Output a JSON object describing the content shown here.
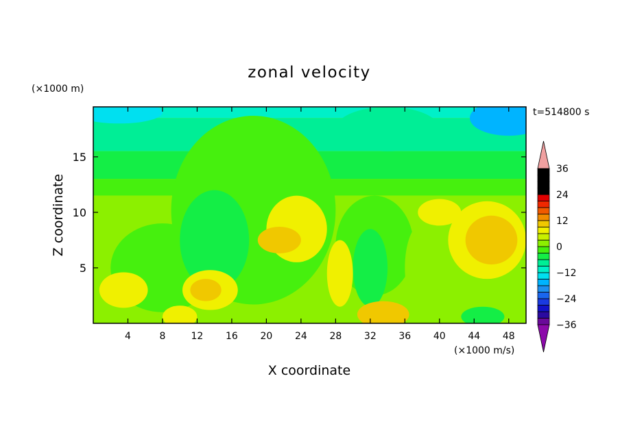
{
  "chart_data": {
    "type": "heatmap",
    "title": "zonal velocity",
    "xlabel": "X coordinate",
    "ylabel": "Z coordinate",
    "x_unit_label": "(×1000 m/s)",
    "y_unit_label": "(×1000 m)",
    "time_label": "t=514800 s",
    "xlim": [
      0,
      50
    ],
    "ylim": [
      0,
      19.5
    ],
    "x_ticks": [
      4,
      8,
      12,
      16,
      20,
      24,
      28,
      32,
      36,
      40,
      44,
      48
    ],
    "y_ticks": [
      5,
      10,
      15
    ],
    "colorbar": {
      "levels": [
        -39,
        -36,
        -33,
        -30,
        -27,
        -24,
        -21,
        -18,
        -15,
        -12,
        -9,
        -6,
        -3,
        0,
        3,
        6,
        9,
        12,
        15,
        18,
        21,
        24,
        27,
        30,
        33,
        36,
        39
      ],
      "tick_labels": [
        36,
        24,
        12,
        0,
        -12,
        -24,
        -36
      ],
      "colors": [
        "#6a0a9a",
        "#2a0aa0",
        "#1212c8",
        "#1a3ae0",
        "#1a66ee",
        "#1e90f0",
        "#00b4ff",
        "#00e0f0",
        "#00f0c8",
        "#00ee96",
        "#14ee46",
        "#46f00e",
        "#8cf000",
        "#c8f000",
        "#f0f000",
        "#f0c800",
        "#f08c00",
        "#f05a00",
        "#f02800",
        "#e00000"
      ],
      "under_color": "#8c0aaa",
      "over_color": "#f0a0a0"
    },
    "field": {
      "background_value": 3,
      "bands": [
        {
          "z_top": 19.5,
          "value": -12
        },
        {
          "z_top": 18.5,
          "value": -9
        },
        {
          "z_top": 15.5,
          "value": -6
        },
        {
          "z_top": 13.0,
          "value": -3
        },
        {
          "z_top": 11.5,
          "value": 0
        }
      ],
      "features": [
        {
          "x": 18.5,
          "z": 10.2,
          "rx": 9.5,
          "rz": 8.5,
          "value": -3
        },
        {
          "x": 32.5,
          "z": 7.0,
          "rx": 4.5,
          "rz": 4.5,
          "value": -3
        },
        {
          "x": 8.0,
          "z": 5.0,
          "rx": 6.0,
          "rz": 4.0,
          "value": -3
        },
        {
          "x": 14.0,
          "z": 7.5,
          "rx": 4.0,
          "rz": 4.5,
          "value": -6
        },
        {
          "x": 32.0,
          "z": 5.0,
          "rx": 2.0,
          "rz": 3.5,
          "value": -6
        },
        {
          "x": 23.5,
          "z": 8.5,
          "rx": 3.5,
          "rz": 3.0,
          "value": 6
        },
        {
          "x": 21.5,
          "z": 7.5,
          "rx": 2.5,
          "rz": 1.2,
          "value": 9
        },
        {
          "x": 28.5,
          "z": 4.5,
          "rx": 1.5,
          "rz": 3.0,
          "value": 6
        },
        {
          "x": 13.5,
          "z": 3.0,
          "rx": 3.2,
          "rz": 1.8,
          "value": 6
        },
        {
          "x": 13.0,
          "z": 3.0,
          "rx": 1.8,
          "rz": 1.0,
          "value": 9
        },
        {
          "x": 3.5,
          "z": 3.0,
          "rx": 2.8,
          "rz": 1.6,
          "value": 6
        },
        {
          "x": 45.5,
          "z": 7.5,
          "rx": 4.5,
          "rz": 3.5,
          "value": 6
        },
        {
          "x": 46.0,
          "z": 7.5,
          "rx": 3.0,
          "rz": 2.2,
          "value": 9
        },
        {
          "x": 40.0,
          "z": 10.0,
          "rx": 2.5,
          "rz": 1.2,
          "value": 6
        },
        {
          "x": 33.5,
          "z": 0.8,
          "rx": 3.0,
          "rz": 1.2,
          "value": 9
        },
        {
          "x": 10.0,
          "z": 0.6,
          "rx": 2.0,
          "rz": 1.0,
          "value": 6
        },
        {
          "x": 38.0,
          "z": 5.0,
          "rx": 2.0,
          "rz": 4.0,
          "value": 0
        },
        {
          "x": 45.0,
          "z": 0.6,
          "rx": 2.5,
          "rz": 0.9,
          "value": -6
        },
        {
          "x": 48.0,
          "z": 18.5,
          "rx": 4.5,
          "rz": 1.6,
          "value": -18
        },
        {
          "x": 3.0,
          "z": 19.0,
          "rx": 5.0,
          "rz": 1.0,
          "value": -15
        },
        {
          "x": 34.0,
          "z": 17.5,
          "rx": 6.0,
          "rz": 2.0,
          "value": -9
        }
      ]
    }
  }
}
